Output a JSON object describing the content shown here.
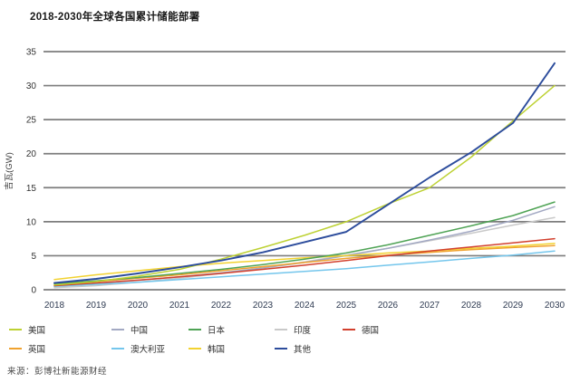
{
  "title": "2018-2030年全球各国累计储能部署",
  "source": "来源：彭博社新能源财经",
  "chart_data": {
    "type": "line",
    "title": "2018-2030年全球各国累计储能部署",
    "xlabel": "",
    "ylabel": "吉瓦(GW)",
    "x": [
      2018,
      2019,
      2020,
      2021,
      2022,
      2023,
      2024,
      2025,
      2026,
      2027,
      2028,
      2029,
      2030
    ],
    "ylim": [
      0,
      35
    ],
    "ytick_step": 5,
    "yticks": [
      0,
      5,
      10,
      15,
      20,
      25,
      30,
      35
    ],
    "grid": "horizontal-only",
    "gridline_color": "#7d7d7d",
    "legend_position": "bottom",
    "series": [
      {
        "id": "us",
        "name": "美国",
        "color": "#bdd133",
        "values": [
          0.7,
          1.2,
          2.0,
          3.0,
          4.5,
          6.2,
          8.0,
          10.0,
          12.6,
          15.0,
          19.5,
          24.8,
          30.0
        ]
      },
      {
        "id": "china",
        "name": "中国",
        "color": "#a3a9c3",
        "values": [
          0.5,
          0.9,
          1.4,
          1.9,
          2.5,
          3.2,
          4.0,
          5.0,
          6.1,
          7.3,
          8.6,
          10.2,
          12.2
        ]
      },
      {
        "id": "japan",
        "name": "日本",
        "color": "#4fa355",
        "values": [
          0.9,
          1.3,
          1.8,
          2.4,
          3.0,
          3.7,
          4.5,
          5.4,
          6.6,
          8.0,
          9.4,
          10.9,
          12.9
        ]
      },
      {
        "id": "india",
        "name": "印度",
        "color": "#c9c9c9",
        "values": [
          0.3,
          0.6,
          1.1,
          1.7,
          2.4,
          3.2,
          4.1,
          5.1,
          6.1,
          7.2,
          8.3,
          9.5,
          10.6
        ]
      },
      {
        "id": "germany",
        "name": "德国",
        "color": "#d2402e",
        "values": [
          0.6,
          1.0,
          1.4,
          1.9,
          2.4,
          3.0,
          3.6,
          4.3,
          5.0,
          5.7,
          6.3,
          6.9,
          7.5
        ]
      },
      {
        "id": "uk",
        "name": "英国",
        "color": "#f0a22e",
        "values": [
          0.7,
          1.2,
          1.7,
          2.2,
          2.8,
          3.4,
          4.0,
          4.6,
          5.1,
          5.5,
          5.9,
          6.2,
          6.5
        ]
      },
      {
        "id": "australia",
        "name": "澳大利亚",
        "color": "#74c6ec",
        "values": [
          0.5,
          0.8,
          1.1,
          1.5,
          1.9,
          2.3,
          2.7,
          3.1,
          3.6,
          4.1,
          4.6,
          5.1,
          5.7
        ]
      },
      {
        "id": "korea",
        "name": "韩国",
        "color": "#f2d230",
        "values": [
          1.5,
          2.2,
          2.8,
          3.4,
          3.9,
          4.3,
          4.7,
          5.0,
          5.4,
          5.7,
          6.1,
          6.4,
          6.8
        ]
      },
      {
        "id": "others",
        "name": "其他",
        "color": "#2c4c9c",
        "values": [
          1.0,
          1.6,
          2.4,
          3.3,
          4.3,
          5.5,
          7.0,
          8.5,
          12.5,
          16.5,
          20.2,
          24.5,
          33.3
        ]
      }
    ],
    "legend_rows": [
      [
        0,
        1,
        2,
        3,
        4
      ],
      [
        5,
        6,
        7,
        8
      ]
    ]
  }
}
